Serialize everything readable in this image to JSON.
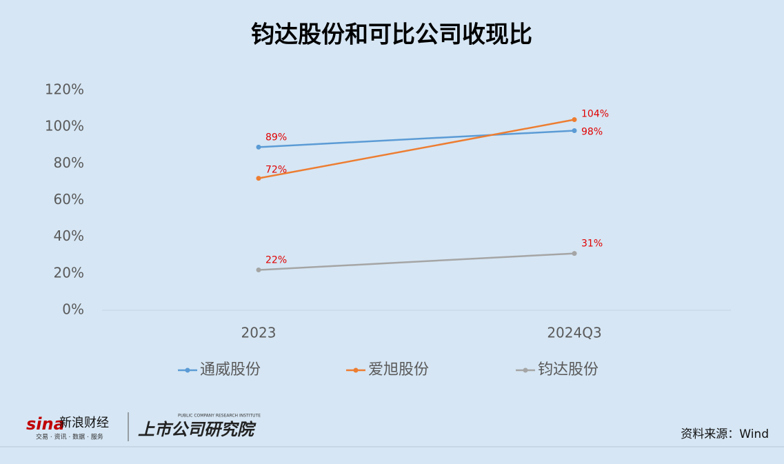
{
  "chart_data": {
    "type": "line",
    "title": "钧达股份和可比公司收现比",
    "categories": [
      "2023",
      "2024Q3"
    ],
    "series": [
      {
        "name": "通威股份",
        "color": "#5b9bd5",
        "values": [
          89,
          98
        ],
        "value_labels": [
          "89%",
          "98%"
        ]
      },
      {
        "name": "爱旭股份",
        "color": "#ed7d31",
        "values": [
          72,
          104
        ],
        "value_labels": [
          "72%",
          "104%"
        ]
      },
      {
        "name": "钧达股份",
        "color": "#a5a5a5",
        "values": [
          22,
          31
        ],
        "value_labels": [
          "22%",
          "31%"
        ]
      }
    ],
    "ylim": [
      0,
      120
    ],
    "yticks": [
      {
        "value": 0,
        "label": "0%"
      },
      {
        "value": 20,
        "label": "20%"
      },
      {
        "value": 40,
        "label": "40%"
      },
      {
        "value": 60,
        "label": "60%"
      },
      {
        "value": 80,
        "label": "80%"
      },
      {
        "value": 100,
        "label": "100%"
      },
      {
        "value": 120,
        "label": "120%"
      }
    ],
    "grid": false,
    "legend": "bottom"
  },
  "footer": {
    "source": "资料来源：Wind",
    "sina": "sina",
    "sina_name": "新浪财经",
    "sina_tagline": "交易 · 资讯 · 数据 · 服务",
    "institute": "上市公司研究院",
    "institute_en": "PUBLIC COMPANY RESEARCH INSTITUTE"
  }
}
